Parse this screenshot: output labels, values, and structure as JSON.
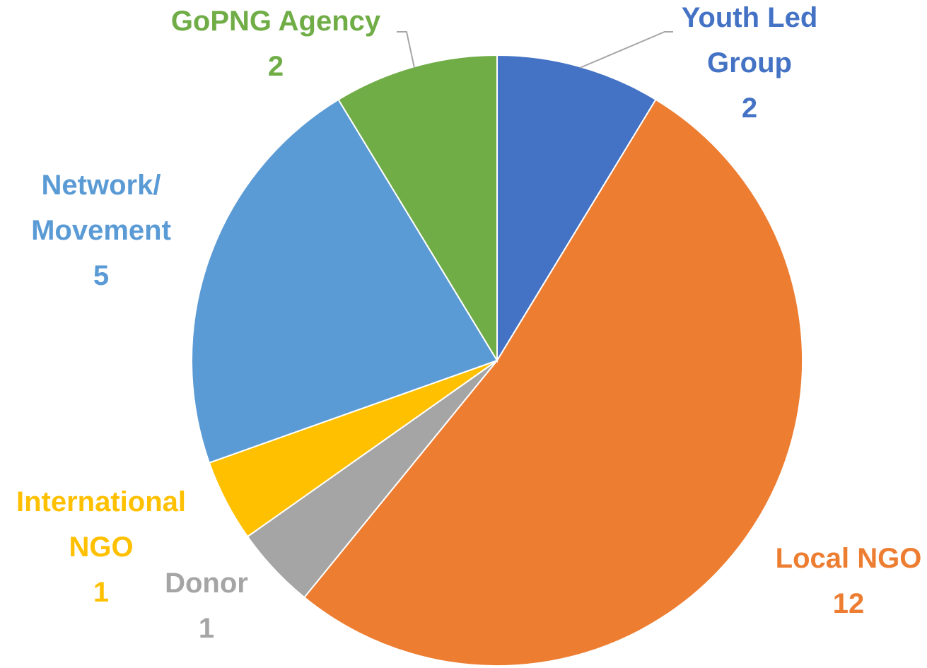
{
  "chart_data": {
    "type": "pie",
    "categories": [
      "Youth Led Group",
      "Local NGO",
      "Donor",
      "International NGO",
      "Network/ Movement",
      "GoPNG Agency"
    ],
    "values": [
      2,
      12,
      1,
      1,
      5,
      2
    ],
    "colors": [
      "#4472c4",
      "#ed7d31",
      "#a5a5a5",
      "#ffc000",
      "#5b9bd5",
      "#70ad47"
    ],
    "start_angle": 90,
    "direction": "clockwise"
  }
}
